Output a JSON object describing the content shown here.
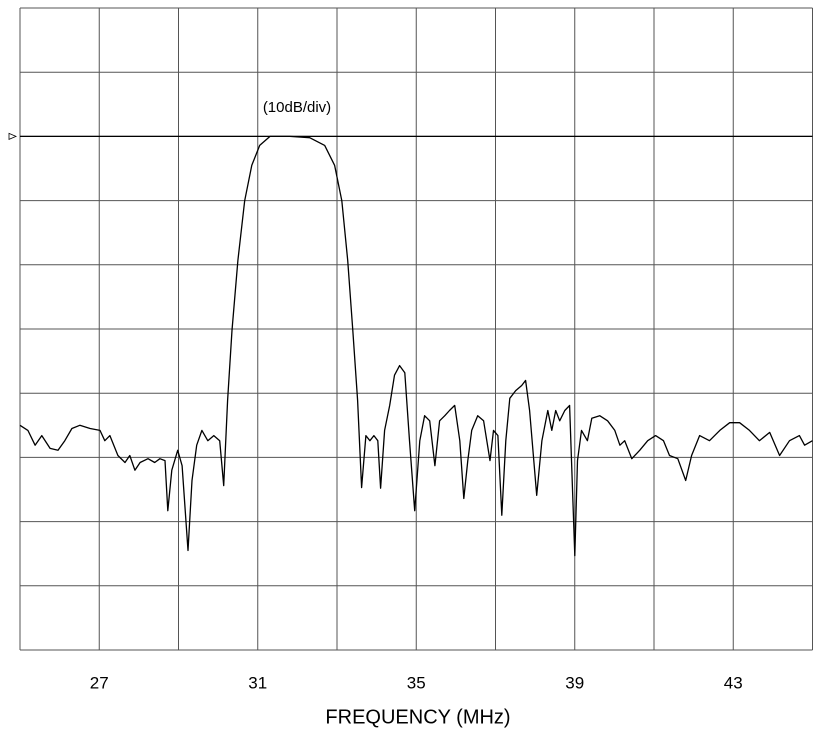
{
  "chart_data": {
    "type": "line",
    "annotation": "(10dB/div)",
    "x_label": "FREQUENCY (MHz)",
    "xlim": [
      25,
      45
    ],
    "xticks": [
      27,
      31,
      35,
      39,
      43
    ],
    "x_minor_ticks": [
      25,
      29,
      33,
      37,
      41,
      45
    ],
    "ylim": [
      -80,
      20
    ],
    "y_grid_lines": [
      -80,
      -70,
      -60,
      -50,
      -40,
      -30,
      -20,
      -10,
      0,
      10,
      20
    ],
    "reference_level": 0,
    "grid": true,
    "series": [
      {
        "color": "#000000",
        "x": [
          25.0,
          25.2,
          25.38,
          25.55,
          25.76,
          25.96,
          26.13,
          26.31,
          26.51,
          26.77,
          27.02,
          27.14,
          27.27,
          27.47,
          27.65,
          27.77,
          27.9,
          28.03,
          28.23,
          28.4,
          28.53,
          28.66,
          28.73,
          28.83,
          28.98,
          29.09,
          29.24,
          29.34,
          29.46,
          29.59,
          29.74,
          29.89,
          30.04,
          30.14,
          30.24,
          30.35,
          30.5,
          30.67,
          30.85,
          31.05,
          31.31,
          31.81,
          32.31,
          32.69,
          32.94,
          33.12,
          33.27,
          33.4,
          33.52,
          33.62,
          33.73,
          33.83,
          33.93,
          34.03,
          34.1,
          34.2,
          34.33,
          34.45,
          34.58,
          34.71,
          34.83,
          34.96,
          35.09,
          35.21,
          35.34,
          35.47,
          35.59,
          35.72,
          35.84,
          35.97,
          36.1,
          36.2,
          36.3,
          36.4,
          36.55,
          36.7,
          36.86,
          36.95,
          37.06,
          37.16,
          37.26,
          37.36,
          37.51,
          37.66,
          37.76,
          37.86,
          38.04,
          38.17,
          38.32,
          38.42,
          38.52,
          38.62,
          38.75,
          38.87,
          39.0,
          39.07,
          39.17,
          39.32,
          39.43,
          39.63,
          39.83,
          40.01,
          40.14,
          40.26,
          40.44,
          40.64,
          40.84,
          41.04,
          41.24,
          41.39,
          41.6,
          41.8,
          41.95,
          42.15,
          42.4,
          42.66,
          42.91,
          43.16,
          43.41,
          43.66,
          43.92,
          44.17,
          44.42,
          44.67,
          44.8,
          45.0
        ],
        "values": [
          -45.0,
          -45.8,
          -48.1,
          -46.6,
          -48.6,
          -48.9,
          -47.4,
          -45.5,
          -45.0,
          -45.5,
          -45.8,
          -47.4,
          -46.6,
          -49.7,
          -50.8,
          -49.7,
          -52.0,
          -50.8,
          -50.2,
          -50.8,
          -50.2,
          -50.5,
          -58.3,
          -52.0,
          -48.9,
          -51.3,
          -64.5,
          -53.6,
          -48.1,
          -45.8,
          -47.4,
          -46.6,
          -47.4,
          -54.4,
          -41.1,
          -30.2,
          -19.3,
          -10.0,
          -4.5,
          -1.4,
          0,
          0,
          -0.2,
          -1.4,
          -4.5,
          -10.0,
          -19.3,
          -30.2,
          -41.1,
          -54.7,
          -46.6,
          -47.4,
          -46.6,
          -47.4,
          -54.8,
          -45.8,
          -41.9,
          -37.2,
          -35.7,
          -36.8,
          -47.4,
          -58.3,
          -47.4,
          -43.5,
          -44.3,
          -51.3,
          -44.3,
          -43.5,
          -42.7,
          -41.9,
          -47.4,
          -56.4,
          -50.5,
          -45.8,
          -43.5,
          -44.3,
          -50.5,
          -45.8,
          -46.6,
          -59.0,
          -47.4,
          -40.8,
          -39.6,
          -38.8,
          -38.0,
          -42.7,
          -55.9,
          -47.4,
          -42.7,
          -45.8,
          -42.7,
          -44.3,
          -42.7,
          -41.9,
          -65.3,
          -50.5,
          -45.8,
          -47.4,
          -43.9,
          -43.5,
          -44.3,
          -45.8,
          -48.1,
          -47.4,
          -50.2,
          -48.9,
          -47.4,
          -46.6,
          -47.4,
          -49.7,
          -50.2,
          -53.6,
          -49.7,
          -46.6,
          -47.4,
          -45.8,
          -44.6,
          -44.6,
          -45.8,
          -47.4,
          -46.1,
          -49.7,
          -47.4,
          -46.6,
          -48.1,
          -47.4
        ]
      }
    ]
  }
}
